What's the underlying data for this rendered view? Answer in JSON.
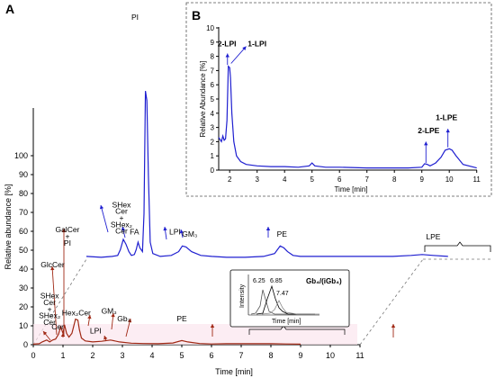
{
  "chart_data": [
    {
      "panel": "A",
      "type": "line",
      "xlabel": "Time [min]",
      "ylabel": "Relative abundance [%]",
      "xlim": [
        0,
        11
      ],
      "ylim": [
        0,
        120
      ],
      "x_ticks": [
        0,
        1,
        2,
        3,
        4,
        5,
        6,
        7,
        8,
        9,
        10,
        11
      ],
      "y_ticks": [
        0,
        10,
        20,
        30,
        40,
        50,
        60,
        70,
        80,
        90,
        100
      ],
      "y_tick_labels": [
        "0",
        "10",
        "20",
        "30",
        "40",
        "50",
        "60",
        "70",
        "80",
        "90",
        "100"
      ],
      "series": [
        {
          "color": "#1f1fd0",
          "baseline": 36,
          "x": [
            1.2,
            1.6,
            1.9,
            2.05,
            2.12,
            2.2,
            2.27,
            2.35,
            2.42,
            2.5,
            2.55,
            2.6,
            2.65,
            2.72,
            2.76,
            2.8,
            2.84,
            2.88,
            2.93,
            3.0,
            3.2,
            3.5,
            3.7,
            3.8,
            3.9,
            4.05,
            4.3,
            4.6,
            5.0,
            5.5,
            6.0,
            6.3,
            6.45,
            6.55,
            6.65,
            6.8,
            7.0,
            7.5,
            8.0,
            8.5,
            9.0,
            9.5,
            10.0,
            10.3,
            10.6,
            11.0
          ],
          "values": [
            37.5,
            37,
            37.5,
            38,
            41,
            46.5,
            44,
            40,
            38,
            38.5,
            41,
            45,
            42,
            40,
            60,
            125,
            120,
            80,
            45,
            39,
            37.5,
            38,
            40,
            43,
            42.5,
            40,
            38,
            37.5,
            37,
            37,
            37.5,
            39,
            43,
            42,
            40,
            38,
            37.5,
            37.5,
            37.5,
            37.5,
            37.5,
            37.5,
            38,
            38.5,
            38,
            37.5
          ]
        },
        {
          "color": "#a02814",
          "baseline": 0,
          "x": [
            0,
            0.2,
            0.3,
            0.45,
            0.55,
            0.65,
            0.75,
            0.85,
            0.92,
            1.0,
            1.05,
            1.12,
            1.2,
            1.3,
            1.42,
            1.5,
            1.55,
            1.62,
            1.75,
            2.0,
            2.3,
            2.6,
            2.9,
            3.3,
            3.7,
            4.2,
            4.7,
            5.0,
            5.2,
            5.6,
            6.0,
            6.5,
            7.0,
            7.5,
            8.0,
            8.5,
            9.0
          ],
          "values": [
            0.3,
            0.5,
            1.5,
            2.5,
            1.5,
            2.5,
            3,
            5.5,
            9.5,
            6,
            10.5,
            6,
            4,
            6,
            13.5,
            13,
            8,
            3.5,
            2,
            1.5,
            1.8,
            2.5,
            1.5,
            0.8,
            0.6,
            0.5,
            0.9,
            2.2,
            1.5,
            0.6,
            0.4,
            0.5,
            0.5,
            0.5,
            0.5,
            0.4,
            0.3
          ]
        }
      ]
    },
    {
      "panel": "B",
      "type": "line",
      "xlabel": "Time [min]",
      "ylabel": "Relative Abundance [%]",
      "xlim": [
        1.6,
        11
      ],
      "ylim": [
        0,
        10
      ],
      "x_ticks": [
        2,
        3,
        4,
        5,
        6,
        7,
        8,
        9,
        10,
        11
      ],
      "y_ticks": [
        0,
        1,
        2,
        3,
        4,
        5,
        6,
        7,
        8,
        9,
        10
      ],
      "series": [
        {
          "color": "#1f1fd0",
          "x": [
            1.6,
            1.7,
            1.75,
            1.8,
            1.85,
            1.9,
            1.95,
            2.0,
            2.03,
            2.08,
            2.15,
            2.25,
            2.4,
            2.6,
            3.0,
            3.5,
            4.0,
            4.5,
            4.9,
            5.0,
            5.1,
            5.5,
            6.0,
            7.0,
            8.0,
            8.5,
            9.0,
            9.1,
            9.2,
            9.3,
            9.5,
            9.7,
            9.85,
            10.0,
            10.1,
            10.25,
            10.5,
            11.0
          ],
          "values": [
            2.3,
            2.0,
            2.4,
            2.1,
            2.2,
            3.5,
            7.3,
            7.2,
            6.5,
            4.0,
            2.0,
            1.0,
            0.6,
            0.4,
            0.3,
            0.25,
            0.25,
            0.2,
            0.3,
            0.5,
            0.3,
            0.2,
            0.2,
            0.15,
            0.15,
            0.15,
            0.2,
            0.45,
            0.4,
            0.3,
            0.5,
            0.9,
            1.4,
            1.5,
            1.4,
            1.0,
            0.4,
            0.15
          ]
        }
      ]
    }
  ],
  "panel_labels": {
    "a": "A",
    "b": "B"
  },
  "annotations_a": [
    {
      "text": "PI",
      "x": 2.82,
      "y": 124
    },
    {
      "text": "SHex",
      "x": 2.15,
      "y": 63.5
    },
    {
      "text": "Cer",
      "x": 2.15,
      "y": 60
    },
    {
      "text": "+",
      "x": 2.15,
      "y": 56.5
    },
    {
      "text": "SHex₂",
      "x": 2.15,
      "y": 53
    },
    {
      "text": "Cer",
      "x": 2.15,
      "y": 49.5
    },
    {
      "text": "FA",
      "x": 2.5,
      "y": 49
    },
    {
      "text": "LPI",
      "x": 3.6,
      "y": 49
    },
    {
      "text": "GM₃",
      "x": 4.0,
      "y": 48
    },
    {
      "text": "PE",
      "x": 6.5,
      "y": 48
    },
    {
      "text": "LPE",
      "x": 10.6,
      "y": 46.5
    },
    {
      "text": "GalCer",
      "x": 1.15,
      "y": 59.5
    },
    {
      "text": "+",
      "x": 1.15,
      "y": 56
    },
    {
      "text": "PI",
      "x": 1.15,
      "y": 52.5
    },
    {
      "text": "GlcCer",
      "x": 0.65,
      "y": 41
    },
    {
      "text": "SHex",
      "x": 0.55,
      "y": 24.5
    },
    {
      "text": "Cer",
      "x": 0.55,
      "y": 21
    },
    {
      "text": "+",
      "x": 0.55,
      "y": 17.5
    },
    {
      "text": "SHex₂",
      "x": 0.55,
      "y": 14
    },
    {
      "text": "Cer",
      "x": 0.55,
      "y": 10.5
    },
    {
      "text": "Cer",
      "x": 0.82,
      "y": 8
    },
    {
      "text": "Hex₂Cer",
      "x": 1.45,
      "y": 15.5
    },
    {
      "text": "GM₃",
      "x": 2.55,
      "y": 16.5
    },
    {
      "text": "Gb₃",
      "x": 3.05,
      "y": 12.5
    },
    {
      "text": "LPI",
      "x": 2.1,
      "y": 6
    },
    {
      "text": "PE",
      "x": 5.0,
      "y": 12.5
    },
    {
      "text": "LPE",
      "x": 10.0,
      "y": 12.5
    }
  ],
  "annotations_b": [
    {
      "text": "2-LPI",
      "x": 1.9,
      "y": 8.7
    },
    {
      "text": "1-LPI",
      "x": 3.0,
      "y": 8.7
    },
    {
      "text": "2-LPE",
      "x": 9.25,
      "y": 2.6
    },
    {
      "text": "1-LPE",
      "x": 9.9,
      "y": 3.5
    }
  ],
  "inset": {
    "title": "Gb₄/(iGb₄)",
    "peak_labels": [
      "6.25",
      "6.85",
      "7.47"
    ],
    "ylabel": "Intensity",
    "xlabel": "Time [min]"
  }
}
